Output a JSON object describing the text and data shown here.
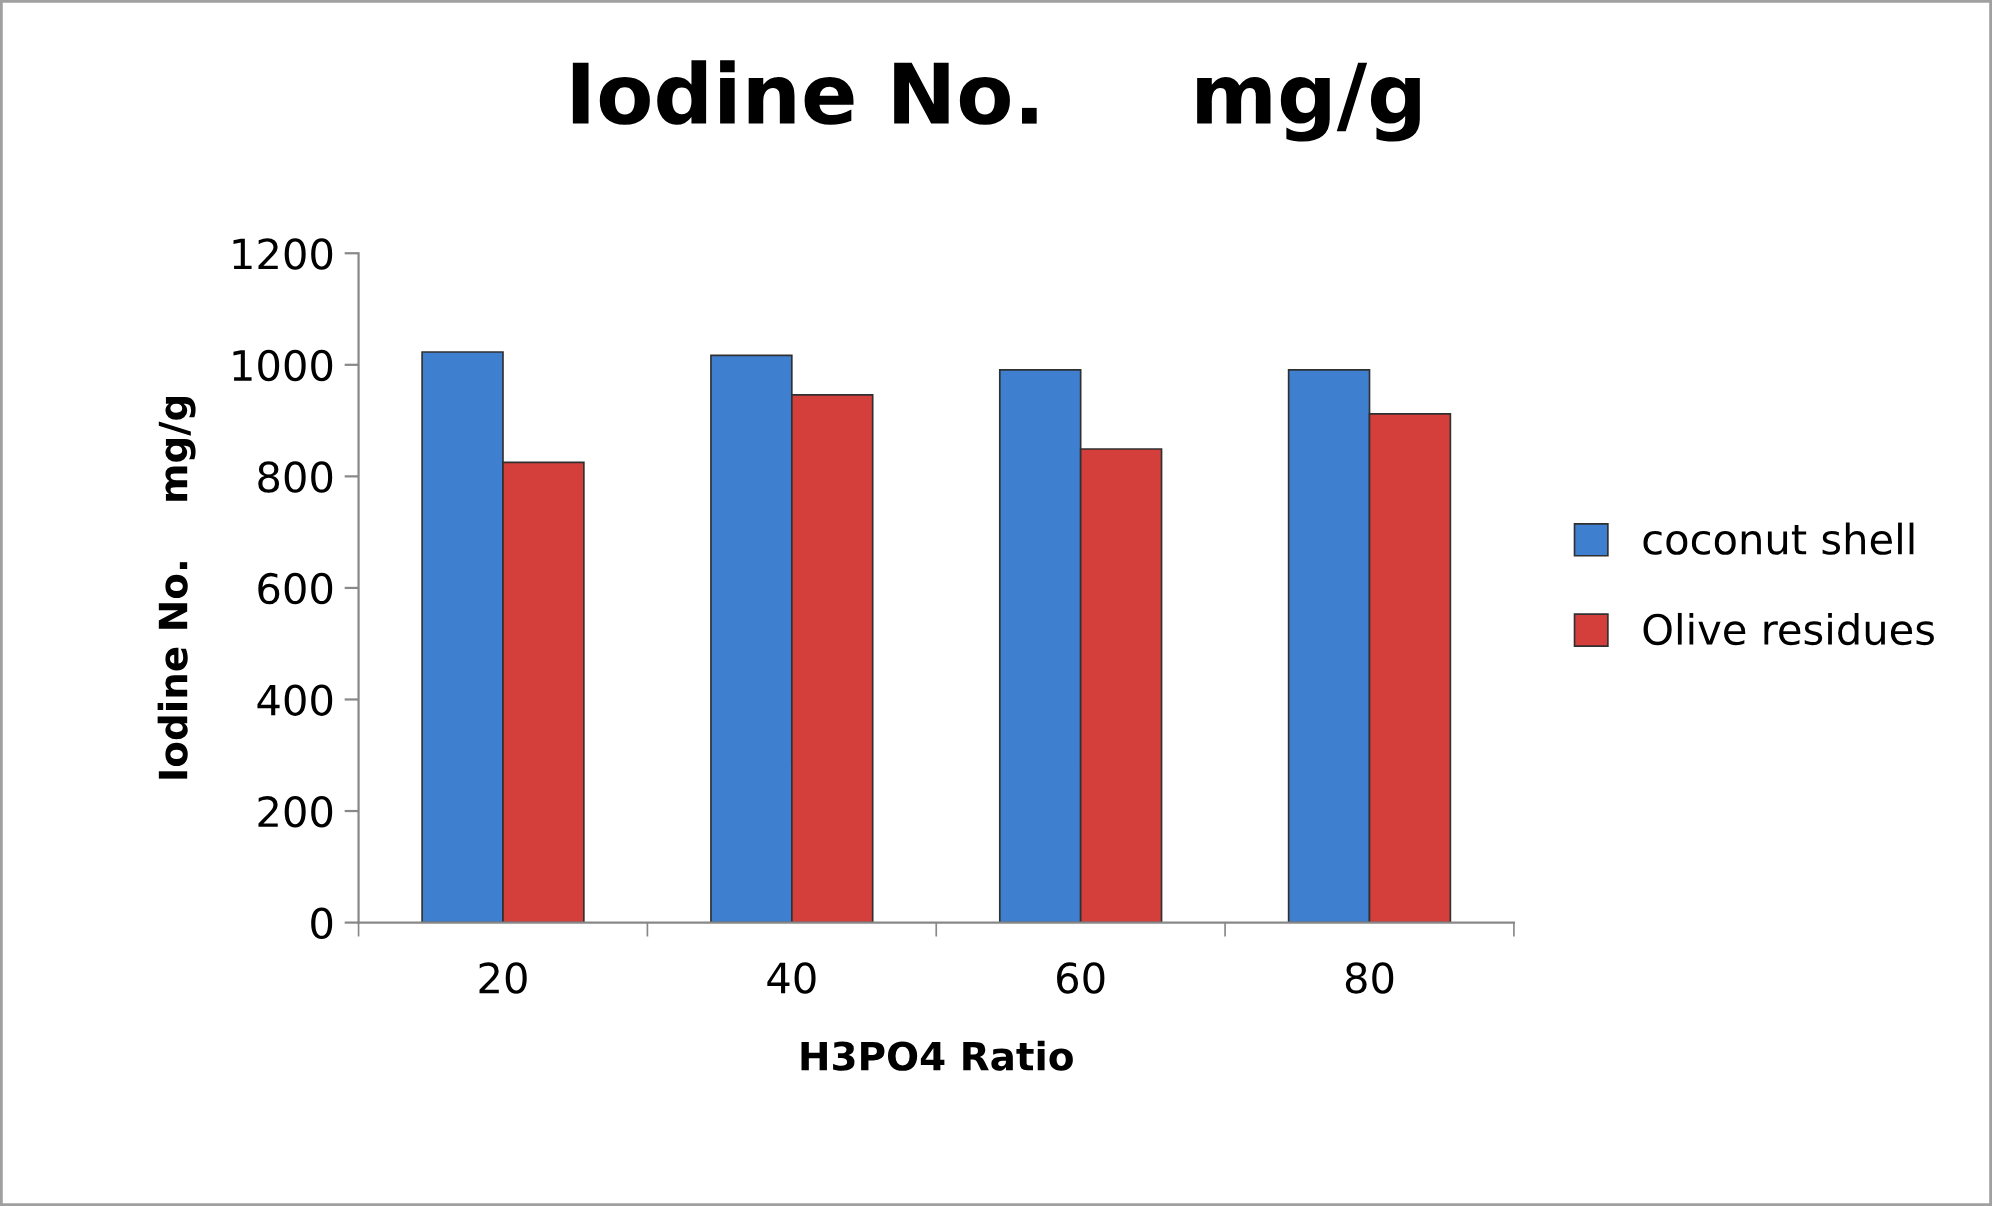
{
  "chart_data": {
    "type": "bar",
    "title": "Iodine No.     mg/g",
    "xlabel": "H3PO4 Ratio",
    "ylabel": "Iodine No.    mg/g",
    "categories": [
      "20",
      "40",
      "60",
      "80"
    ],
    "series": [
      {
        "name": "coconut shell",
        "color": "#3f7fd0",
        "values": [
          1023,
          1017,
          991,
          991
        ]
      },
      {
        "name": "Olive residues",
        "color": "#d43f3c",
        "values": [
          825,
          946,
          849,
          912
        ]
      }
    ],
    "ylim": [
      0,
      1200
    ],
    "yticks": [
      0,
      200,
      400,
      600,
      800,
      1000,
      1200
    ],
    "grid": false,
    "legend": "right"
  }
}
